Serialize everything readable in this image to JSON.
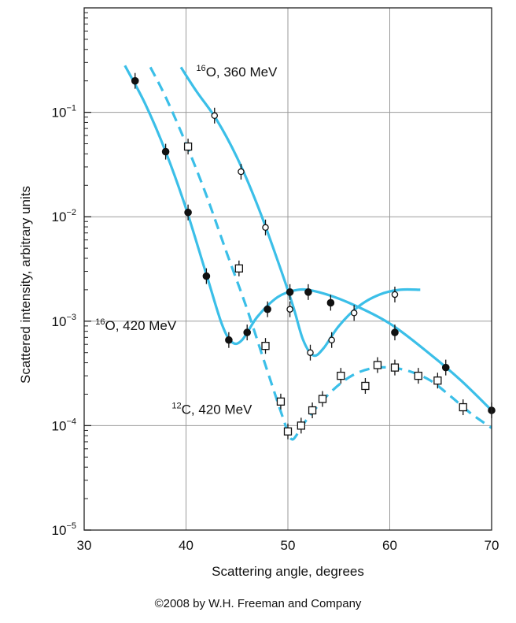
{
  "chart_data": {
    "type": "scatter",
    "xlabel": "Scattering angle, degrees",
    "ylabel": "Scattered intensity, arbitrary units",
    "xlim": [
      30,
      70
    ],
    "ylim": [
      1e-05,
      1
    ],
    "yscale": "log",
    "grid": true,
    "x_ticks": [
      {
        "value": 30,
        "label": "30"
      },
      {
        "value": 40,
        "label": "40"
      },
      {
        "value": 50,
        "label": "50"
      },
      {
        "value": 60,
        "label": "60"
      },
      {
        "value": 70,
        "label": "70"
      }
    ],
    "y_ticks": [
      {
        "value": 1e-05,
        "base": "10",
        "exp": "−5"
      },
      {
        "value": 0.0001,
        "base": "10",
        "exp": "−4"
      },
      {
        "value": 0.001,
        "base": "10",
        "exp": "−3"
      },
      {
        "value": 0.01,
        "base": "10",
        "exp": "−2"
      },
      {
        "value": 0.1,
        "base": "10",
        "exp": "−1"
      }
    ],
    "curve_color": "#3bbfe8",
    "series": [
      {
        "key": "o16_360",
        "label_sup": "16",
        "label_text": "O, 360 MeV",
        "marker": "open-circle",
        "line_style": "solid",
        "points": [
          [
            42.8,
            0.093
          ],
          [
            45.4,
            0.027
          ],
          [
            47.8,
            0.0079
          ],
          [
            50.2,
            0.0013
          ],
          [
            52.2,
            0.0005
          ],
          [
            54.3,
            0.00066
          ],
          [
            56.5,
            0.0012
          ],
          [
            60.5,
            0.0018
          ]
        ],
        "fit": [
          [
            39.5,
            0.27
          ],
          [
            41,
            0.16
          ],
          [
            43,
            0.085
          ],
          [
            45,
            0.037
          ],
          [
            47,
            0.013
          ],
          [
            49,
            0.0038
          ],
          [
            50.5,
            0.0014
          ],
          [
            51.5,
            0.00066
          ],
          [
            52.5,
            0.00047
          ],
          [
            53.5,
            0.00055
          ],
          [
            55,
            0.0009
          ],
          [
            57,
            0.0014
          ],
          [
            59,
            0.0018
          ],
          [
            61,
            0.002
          ],
          [
            63,
            0.002
          ]
        ]
      },
      {
        "key": "o16_420",
        "label_sup": "16",
        "label_text": "O, 420 MeV",
        "marker": "filled-circle",
        "line_style": "solid",
        "points": [
          [
            35.0,
            0.2
          ],
          [
            38.0,
            0.042
          ],
          [
            40.2,
            0.011
          ],
          [
            42.0,
            0.0027
          ],
          [
            44.2,
            0.00066
          ],
          [
            46.0,
            0.00078
          ],
          [
            48.0,
            0.0013
          ],
          [
            50.2,
            0.0019
          ],
          [
            52.0,
            0.0019
          ],
          [
            54.2,
            0.0015
          ],
          [
            60.5,
            0.00078
          ],
          [
            65.5,
            0.00036
          ],
          [
            70.0,
            0.00014
          ]
        ],
        "fit": [
          [
            34.0,
            0.28
          ],
          [
            36,
            0.12
          ],
          [
            38,
            0.042
          ],
          [
            40,
            0.012
          ],
          [
            42,
            0.0028
          ],
          [
            43.5,
            0.00095
          ],
          [
            44.5,
            0.00063
          ],
          [
            45.5,
            0.00066
          ],
          [
            47,
            0.0011
          ],
          [
            49,
            0.0017
          ],
          [
            51,
            0.002
          ],
          [
            53,
            0.0019
          ],
          [
            56,
            0.0015
          ],
          [
            60,
            0.00095
          ],
          [
            64,
            0.00048
          ],
          [
            67,
            0.00027
          ],
          [
            70,
            0.00014
          ]
        ]
      },
      {
        "key": "c12_420",
        "label_sup": "12",
        "label_text": "C, 420 MeV",
        "marker": "open-square",
        "line_style": "dashed",
        "points": [
          [
            40.2,
            0.047
          ],
          [
            45.2,
            0.0032
          ],
          [
            47.8,
            0.00058
          ],
          [
            49.3,
            0.00017
          ],
          [
            50.0,
            8.8e-05
          ],
          [
            51.3,
            0.0001
          ],
          [
            52.4,
            0.00014
          ],
          [
            53.4,
            0.00018
          ],
          [
            55.2,
            0.0003
          ],
          [
            57.6,
            0.00024
          ],
          [
            58.8,
            0.00038
          ],
          [
            60.5,
            0.00036
          ],
          [
            62.8,
            0.0003
          ],
          [
            64.7,
            0.00027
          ],
          [
            67.2,
            0.00015
          ]
        ],
        "fit": [
          [
            36.5,
            0.27
          ],
          [
            38,
            0.14
          ],
          [
            40,
            0.05
          ],
          [
            42,
            0.016
          ],
          [
            44,
            0.0045
          ],
          [
            46,
            0.0013
          ],
          [
            48,
            0.00033
          ],
          [
            49.5,
            0.00012
          ],
          [
            50.3,
            7.5e-05
          ],
          [
            51,
            8.5e-05
          ],
          [
            52,
            0.00012
          ],
          [
            54,
            0.0002
          ],
          [
            56,
            0.00029
          ],
          [
            58,
            0.00035
          ],
          [
            60,
            0.00036
          ],
          [
            62,
            0.00033
          ],
          [
            64,
            0.00027
          ],
          [
            66,
            0.00019
          ],
          [
            68,
            0.00013
          ],
          [
            70,
            9.5e-05
          ]
        ]
      }
    ]
  },
  "footer": {
    "copyright": "©2008 by W.H. Freeman and Company"
  }
}
